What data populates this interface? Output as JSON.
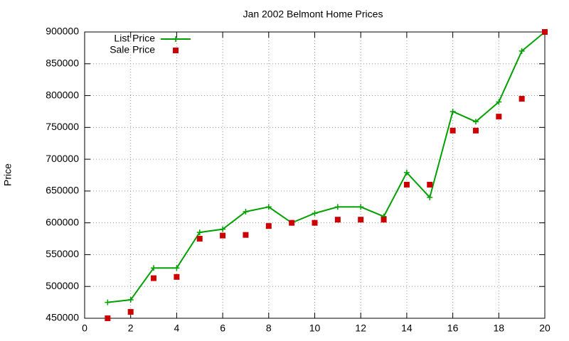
{
  "chart_data": {
    "type": "line",
    "title": "Jan 2002 Belmont Home Prices",
    "y_label": "Price",
    "x": [
      1,
      2,
      3,
      4,
      5,
      6,
      7,
      8,
      9,
      10,
      11,
      12,
      13,
      14,
      15,
      16,
      17,
      18,
      19,
      20
    ],
    "series": [
      {
        "name": "List Price",
        "color": "#00a000",
        "style": "linespoints",
        "values": [
          475000,
          479000,
          529000,
          529000,
          585000,
          590000,
          617500,
          625000,
          600000,
          615000,
          625000,
          625000,
          610000,
          679000,
          640000,
          775000,
          759000,
          790000,
          870000,
          900000
        ]
      },
      {
        "name": "Sale Price",
        "color": "#cc0000",
        "style": "points",
        "values": [
          450000,
          460000,
          513000,
          515000,
          575000,
          580000,
          581000,
          595000,
          600000,
          600000,
          605000,
          605000,
          605000,
          660000,
          660000,
          745000,
          745000,
          767000,
          795000,
          900000
        ]
      }
    ],
    "xlim": [
      0,
      20
    ],
    "xticks": [
      0,
      2,
      4,
      6,
      8,
      10,
      12,
      14,
      16,
      18,
      20
    ],
    "ylim": [
      450000,
      900000
    ],
    "yticks": [
      450000,
      500000,
      550000,
      600000,
      650000,
      700000,
      750000,
      800000,
      850000,
      900000
    ],
    "grid": true,
    "legend": "top-left"
  }
}
